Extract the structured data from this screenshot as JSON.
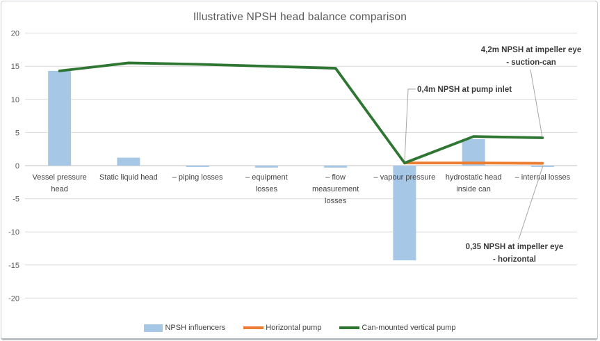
{
  "title": "Illustrative NPSH head balance comparison",
  "colors": {
    "bar_fill": "#A7C7E7",
    "horizontal_pump": "#ED7D31",
    "vertical_pump": "#2F7632",
    "gridline": "#D9D9D9",
    "zero_axis": "#BFBFBF",
    "axis_text": "#595959",
    "category_text": "#3F3F3F",
    "leader_line": "#A6A6A6",
    "title_text": "#595959"
  },
  "chart_data": {
    "type": "bar+line combo (waterfall-style NPSH balance)",
    "title": "Illustrative NPSH head balance comparison",
    "xlabel": "",
    "ylabel": "",
    "ylim": [
      -20,
      20
    ],
    "y_ticks": [
      20,
      15,
      10,
      5,
      0,
      -5,
      -10,
      -15,
      -20
    ],
    "grid": true,
    "legend_position": "bottom",
    "categories": [
      "Vessel pressure head",
      "Static liquid head",
      "– piping losses",
      "– equipment losses",
      "– flow measurement losses",
      "– vapour pressure",
      "hydrostatic head inside can",
      "– internal losses"
    ],
    "category_lines": [
      [
        "Vessel pressure",
        "head"
      ],
      [
        "Static liquid head"
      ],
      [
        "– piping losses"
      ],
      [
        "– equipment",
        "losses"
      ],
      [
        "– flow",
        "measurement",
        "losses"
      ],
      [
        "– vapour pressure"
      ],
      [
        "hydrostatic head",
        "inside can"
      ],
      [
        "– internal losses"
      ]
    ],
    "series": [
      {
        "name": "NPSH influencers",
        "kind": "bar",
        "color": "#A7C7E7",
        "values": [
          14.3,
          1.2,
          -0.2,
          -0.3,
          -0.3,
          -14.3,
          4.0,
          -0.2
        ]
      },
      {
        "name": "Horizontal pump",
        "kind": "line",
        "color": "#ED7D31",
        "values": [
          null,
          null,
          null,
          null,
          null,
          0.4,
          0.4,
          0.35
        ]
      },
      {
        "name": "Can-mounted vertical pump",
        "kind": "line",
        "color": "#2F7632",
        "values": [
          14.3,
          15.5,
          15.3,
          15.0,
          14.7,
          0.4,
          4.4,
          4.2
        ]
      }
    ],
    "annotations": [
      {
        "lines": [
          "0,4m NPSH at pump inlet"
        ]
      },
      {
        "lines": [
          "4,2m NPSH at impeller eye",
          "- suction-can"
        ]
      },
      {
        "lines": [
          "0,35 NPSH at impeller eye",
          "- horizontal"
        ]
      }
    ]
  }
}
